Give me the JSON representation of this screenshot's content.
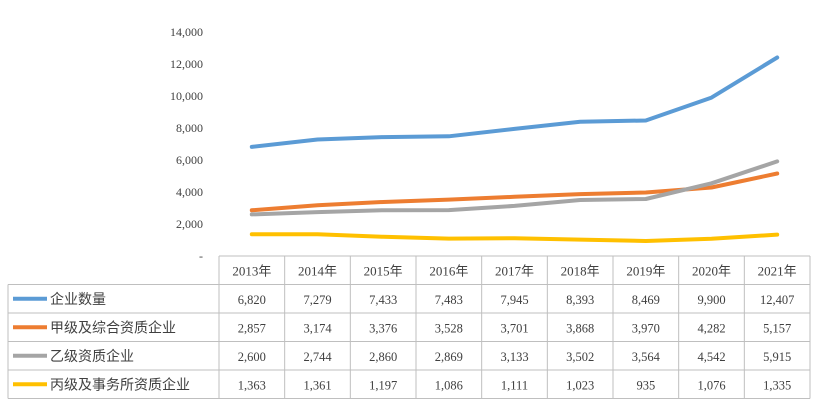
{
  "chart_data": {
    "type": "line",
    "categories": [
      "2013年",
      "2014年",
      "2015年",
      "2016年",
      "2017年",
      "2018年",
      "2019年",
      "2020年",
      "2021年"
    ],
    "y_tick_labels": [
      "-",
      "2,000",
      "4,000",
      "6,000",
      "8,000",
      "10,000",
      "12,000",
      "14,000"
    ],
    "ylim": [
      0,
      14000
    ],
    "grid": false,
    "legend": "data-table",
    "series": [
      {
        "name": "企业数量",
        "color": "#5b9bd5",
        "values": [
          6820,
          7279,
          7433,
          7483,
          7945,
          8393,
          8469,
          9900,
          12407
        ],
        "labels": [
          "6,820",
          "7,279",
          "7,433",
          "7,483",
          "7,945",
          "8,393",
          "8,469",
          "9,900",
          "12,407"
        ]
      },
      {
        "name": "甲级及综合资质企业",
        "color": "#ed7d31",
        "values": [
          2857,
          3174,
          3376,
          3528,
          3701,
          3868,
          3970,
          4282,
          5157
        ],
        "labels": [
          "2,857",
          "3,174",
          "3,376",
          "3,528",
          "3,701",
          "3,868",
          "3,970",
          "4,282",
          "5,157"
        ]
      },
      {
        "name": "乙级资质企业",
        "color": "#a5a5a5",
        "values": [
          2600,
          2744,
          2860,
          2869,
          3133,
          3502,
          3564,
          4542,
          5915
        ],
        "labels": [
          "2,600",
          "2,744",
          "2,860",
          "2,869",
          "3,133",
          "3,502",
          "3,564",
          "4,542",
          "5,915"
        ]
      },
      {
        "name": "丙级及事务所资质企业",
        "color": "#ffc000",
        "values": [
          1363,
          1361,
          1197,
          1086,
          1111,
          1023,
          935,
          1076,
          1335
        ],
        "labels": [
          "1,363",
          "1,361",
          "1,197",
          "1,086",
          "1,111",
          "1,023",
          "935",
          "1,076",
          "1,335"
        ]
      }
    ]
  }
}
